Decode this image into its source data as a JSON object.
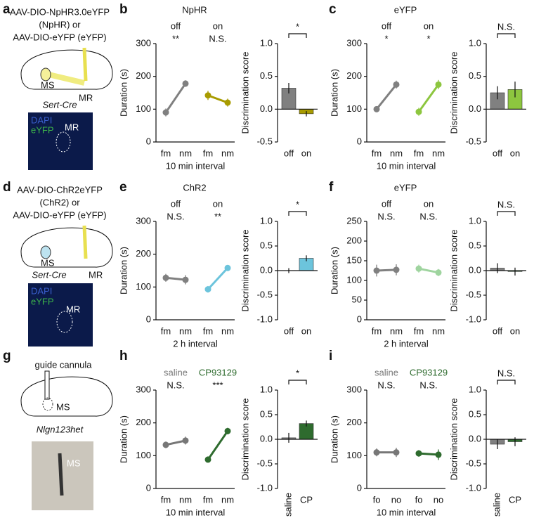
{
  "panel_letters": [
    "a",
    "b",
    "c",
    "d",
    "e",
    "f",
    "g",
    "h",
    "i"
  ],
  "schematics": [
    {
      "lines": [
        "AAV-DIO-NpHR3.0eYFP",
        "(NpHR)  or",
        "AAV-DIO-eYFP (eYFP)"
      ],
      "labels": [
        "MS",
        "MR"
      ],
      "genotype": "Sert-Cre",
      "image_labels": [
        "DAPI",
        "eYFP",
        "MR"
      ]
    },
    {
      "lines": [
        "AAV-DIO-ChR2eYFP",
        "(ChR2)  or",
        "AAV-DIO-eYFP (eYFP)"
      ],
      "labels": [
        "MS",
        "MR"
      ],
      "genotype": "Sert-Cre",
      "image_labels": [
        "DAPI",
        "eYFP",
        "MR"
      ]
    },
    {
      "lines": [
        "guide cannula"
      ],
      "labels": [
        "MS"
      ],
      "genotype": "Nlgn123het",
      "image_labels": [
        "MS"
      ]
    }
  ],
  "chart_data": [
    {
      "type": "line",
      "title": "NpHR",
      "ylabel": "Duration (s)",
      "xlabel": "10 min interval",
      "ylim": [
        0,
        300
      ],
      "yticks": [
        0,
        100,
        200,
        300
      ],
      "legend_colored": false,
      "series": [
        {
          "name": "off",
          "significance": "**",
          "color": "#808080",
          "categories": [
            "fm",
            "nm"
          ],
          "values": [
            90,
            178
          ],
          "errors": [
            12,
            10
          ]
        },
        {
          "name": "on",
          "significance": "N.S.",
          "color": "#a89b00",
          "categories": [
            "fm",
            "nm"
          ],
          "values": [
            142,
            120
          ],
          "errors": [
            14,
            12
          ]
        }
      ]
    },
    {
      "type": "bar",
      "ylabel": "Discrimination score",
      "significance": "*",
      "ylim": [
        -0.5,
        1
      ],
      "yticks": [
        -0.5,
        {
          "value": 0,
          "label": "0.0"
        },
        0.5,
        {
          "value": 1,
          "label": "1.0"
        }
      ],
      "categories": [
        "off",
        "on"
      ],
      "values": [
        0.32,
        -0.07
      ],
      "errors": [
        0.08,
        0.04
      ],
      "colors": [
        "#808080",
        "#a89b00"
      ]
    },
    {
      "type": "line",
      "title": "eYFP",
      "ylabel": "Duration (s)",
      "xlabel": "10 min interval",
      "ylim": [
        0,
        300
      ],
      "yticks": [
        0,
        100,
        200,
        300
      ],
      "legend_colored": false,
      "series": [
        {
          "name": "off",
          "significance": "*",
          "color": "#808080",
          "categories": [
            "fm",
            "nm"
          ],
          "values": [
            100,
            175
          ],
          "errors": [
            8,
            12
          ]
        },
        {
          "name": "on",
          "significance": "*",
          "color": "#8dc63f",
          "categories": [
            "fm",
            "nm"
          ],
          "values": [
            92,
            175
          ],
          "errors": [
            12,
            14
          ]
        }
      ]
    },
    {
      "type": "bar",
      "ylabel": "Discrimination score",
      "significance": "N.S.",
      "ylim": [
        -0.5,
        1
      ],
      "yticks": [
        -0.5,
        {
          "value": 0,
          "label": "0.0"
        },
        0.5,
        {
          "value": 1,
          "label": "1.0"
        }
      ],
      "categories": [
        "off",
        "on"
      ],
      "values": [
        0.25,
        0.3
      ],
      "errors": [
        0.1,
        0.12
      ],
      "colors": [
        "#808080",
        "#8dc63f"
      ]
    },
    {
      "type": "line",
      "title": "ChR2",
      "ylabel": "Duration (s)",
      "xlabel": "2 h interval",
      "ylim": [
        0,
        300
      ],
      "yticks": [
        0,
        100,
        200,
        300
      ],
      "legend_colored": false,
      "series": [
        {
          "name": "off",
          "significance": "N.S.",
          "color": "#808080",
          "categories": [
            "fm",
            "nm"
          ],
          "values": [
            128,
            122
          ],
          "errors": [
            12,
            14
          ]
        },
        {
          "name": "on",
          "significance": "**",
          "color": "#6cc4dc",
          "categories": [
            "fm",
            "nm"
          ],
          "values": [
            93,
            158
          ],
          "errors": [
            10,
            8
          ]
        }
      ]
    },
    {
      "type": "bar",
      "ylabel": "Discrimination score",
      "significance": "*",
      "ylim": [
        -1,
        1
      ],
      "yticks": [
        {
          "value": -1,
          "label": "-1.0"
        },
        -0.5,
        {
          "value": 0,
          "label": "0.0"
        },
        0.5,
        {
          "value": 1,
          "label": "1.0"
        }
      ],
      "categories": [
        "off",
        "on"
      ],
      "values": [
        0.0,
        0.25
      ],
      "errors": [
        0.05,
        0.06
      ],
      "colors": [
        "#808080",
        "#6cc4dc"
      ]
    },
    {
      "type": "line",
      "title": "eYFP",
      "ylabel": "Duration (s)",
      "xlabel": "2 h interval",
      "ylim": [
        0,
        250
      ],
      "yticks": [
        0,
        50,
        100,
        150,
        200,
        250
      ],
      "legend_colored": false,
      "series": [
        {
          "name": "off",
          "significance": "N.S.",
          "color": "#808080",
          "categories": [
            "fm",
            "nm"
          ],
          "values": [
            125,
            127
          ],
          "errors": [
            15,
            14
          ]
        },
        {
          "name": "on",
          "significance": "N.S.",
          "color": "#9fd49f",
          "categories": [
            "fm",
            "nm"
          ],
          "values": [
            130,
            120
          ],
          "errors": [
            10,
            9
          ]
        }
      ]
    },
    {
      "type": "bar",
      "ylabel": "Discrimination score",
      "significance": "N.S.",
      "ylim": [
        -1,
        1
      ],
      "yticks": [
        {
          "value": -1,
          "label": "-1.0"
        },
        -0.5,
        {
          "value": 0,
          "label": "0.0"
        },
        0.5,
        {
          "value": 1,
          "label": "1.0"
        }
      ],
      "categories": [
        "off",
        "on"
      ],
      "values": [
        0.05,
        -0.02
      ],
      "errors": [
        0.1,
        0.08
      ],
      "colors": [
        "#808080",
        "#9fd49f"
      ]
    },
    {
      "type": "line",
      "ylabel": "Duration (s)",
      "xlabel": "10 min interval",
      "ylim": [
        0,
        300
      ],
      "yticks": [
        0,
        100,
        200,
        300
      ],
      "legend_colored": true,
      "series": [
        {
          "name": "saline",
          "significance": "N.S.",
          "color": "#777777",
          "categories": [
            "fm",
            "nm"
          ],
          "values": [
            133,
            146
          ],
          "errors": [
            10,
            12
          ]
        },
        {
          "name": "CP93129",
          "significance": "***",
          "color": "#2e6b2e",
          "categories": [
            "fm",
            "nm"
          ],
          "values": [
            88,
            175
          ],
          "errors": [
            8,
            10
          ]
        }
      ]
    },
    {
      "type": "bar",
      "ylabel": "Discrimination score",
      "significance": "*",
      "ylim": [
        -1,
        1
      ],
      "yticks": [
        {
          "value": -1,
          "label": "-1.0"
        },
        -0.5,
        {
          "value": 0,
          "label": "0.0"
        },
        0.5,
        {
          "value": 1,
          "label": "1.0"
        }
      ],
      "categories": [
        "saline",
        "CP"
      ],
      "values": [
        0.03,
        0.32
      ],
      "errors": [
        0.1,
        0.06
      ],
      "colors": [
        "#808080",
        "#2e6b2e"
      ]
    },
    {
      "type": "line",
      "ylabel": "Duration (s)",
      "xlabel": "10 min interval",
      "ylim": [
        0,
        300
      ],
      "yticks": [
        0,
        100,
        200,
        300
      ],
      "legend_colored": true,
      "series": [
        {
          "name": "saline",
          "significance": "N.S.",
          "color": "#777777",
          "categories": [
            "fo",
            "no"
          ],
          "values": [
            110,
            110
          ],
          "errors": [
            12,
            14
          ]
        },
        {
          "name": "CP93129",
          "significance": "N.S.",
          "color": "#2e6b2e",
          "categories": [
            "fo",
            "no"
          ],
          "values": [
            107,
            103
          ],
          "errors": [
            10,
            16
          ]
        }
      ]
    },
    {
      "type": "bar",
      "ylabel": "Discrimination score",
      "significance": "N.S.",
      "ylim": [
        -1,
        1
      ],
      "yticks": [
        {
          "value": -1,
          "label": "-1.0"
        },
        -0.5,
        {
          "value": 0,
          "label": "0.0"
        },
        0.5,
        {
          "value": 1,
          "label": "1.0"
        }
      ],
      "categories": [
        "saline",
        "CP"
      ],
      "values": [
        -0.1,
        -0.05
      ],
      "errors": [
        0.1,
        0.09
      ],
      "colors": [
        "#808080",
        "#2e6b2e"
      ]
    }
  ]
}
